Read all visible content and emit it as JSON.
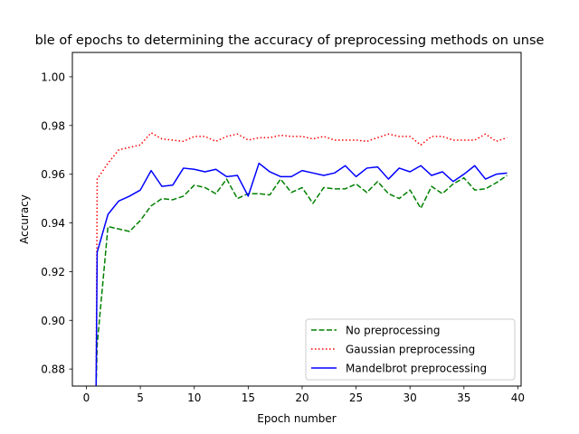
{
  "chart_data": {
    "type": "line",
    "title": "ble of epochs to determining the accuracy of preprocessing methods on unse",
    "xlabel": "Epoch number",
    "ylabel": "Accuracy",
    "xlim": [
      -1.3,
      40.3
    ],
    "ylim": [
      0.873,
      1.01
    ],
    "x_ticks": [
      0,
      5,
      10,
      15,
      20,
      25,
      30,
      35,
      40
    ],
    "y_ticks": [
      0.88,
      0.9,
      0.92,
      0.94,
      0.96,
      0.98,
      1.0
    ],
    "grid": false,
    "legend_position": "lower-right",
    "x": [
      0.9,
      1,
      2,
      3,
      4,
      5,
      6,
      7,
      8,
      9,
      10,
      11,
      12,
      13,
      14,
      15,
      16,
      17,
      18,
      19,
      20,
      21,
      22,
      23,
      24,
      25,
      26,
      27,
      28,
      29,
      30,
      31,
      32,
      33,
      34,
      35,
      36,
      37,
      38,
      39
    ],
    "series": [
      {
        "name": "No preprocessing",
        "color": "#008000",
        "style": "dashed",
        "values": [
          0.873,
          0.89,
          0.9385,
          0.9375,
          0.9365,
          0.941,
          0.947,
          0.95,
          0.9495,
          0.951,
          0.9555,
          0.9545,
          0.952,
          0.958,
          0.95,
          0.952,
          0.952,
          0.9515,
          0.958,
          0.9525,
          0.9545,
          0.948,
          0.9545,
          0.954,
          0.954,
          0.956,
          0.9525,
          0.957,
          0.952,
          0.95,
          0.9535,
          0.946,
          0.955,
          0.952,
          0.956,
          0.9585,
          0.9535,
          0.954,
          0.9565,
          0.9595
        ]
      },
      {
        "name": "Gaussian preprocessing",
        "color": "#ff0000",
        "style": "dotted",
        "values": [
          0.873,
          0.958,
          0.9645,
          0.97,
          0.971,
          0.972,
          0.977,
          0.9745,
          0.974,
          0.9735,
          0.9755,
          0.9755,
          0.9735,
          0.9755,
          0.9765,
          0.974,
          0.975,
          0.975,
          0.976,
          0.9755,
          0.9755,
          0.9745,
          0.9755,
          0.974,
          0.974,
          0.974,
          0.9735,
          0.975,
          0.9765,
          0.9755,
          0.9755,
          0.972,
          0.9755,
          0.9755,
          0.974,
          0.974,
          0.974,
          0.9765,
          0.9735,
          0.975
        ]
      },
      {
        "name": "Mandelbrot preprocessing",
        "color": "#0000ff",
        "style": "solid",
        "values": [
          0.873,
          0.928,
          0.9435,
          0.949,
          0.951,
          0.9535,
          0.9615,
          0.955,
          0.9555,
          0.9625,
          0.962,
          0.961,
          0.962,
          0.959,
          0.9595,
          0.951,
          0.9645,
          0.961,
          0.959,
          0.959,
          0.9615,
          0.9605,
          0.9595,
          0.9605,
          0.9635,
          0.959,
          0.9625,
          0.963,
          0.958,
          0.9625,
          0.961,
          0.9635,
          0.9595,
          0.961,
          0.957,
          0.96,
          0.9635,
          0.958,
          0.96,
          0.9605
        ]
      }
    ]
  }
}
